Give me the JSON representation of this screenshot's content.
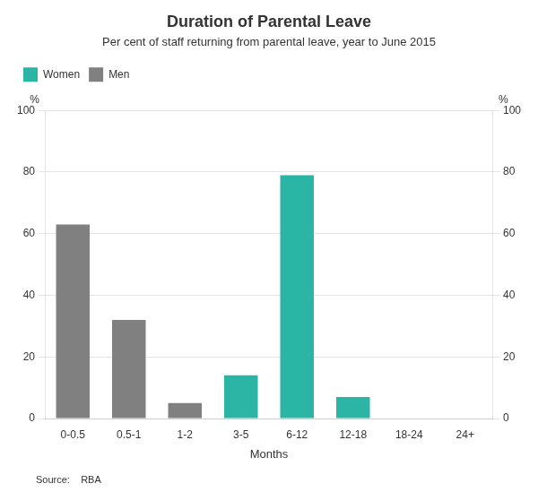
{
  "chart_data": {
    "type": "bar",
    "title": "Duration of Parental Leave",
    "subtitle": "Per cent of staff returning from parental leave, year to June 2015",
    "xlabel": "Months",
    "ylabel": "%",
    "y2label": "%",
    "source": "Source:    RBA",
    "categories": [
      "0-0.5",
      "0.5-1",
      "1-2",
      "3-5",
      "6-12",
      "12-18",
      "18-24",
      "24+"
    ],
    "series": [
      {
        "name": "Women",
        "color": "#2ab5a5",
        "values": [
          0,
          0,
          0,
          14,
          79,
          7,
          0,
          0
        ]
      },
      {
        "name": "Men",
        "color": "#808080",
        "values": [
          63,
          32,
          5,
          0,
          0,
          0,
          0,
          0
        ]
      }
    ],
    "ylim": [
      0,
      100
    ],
    "yticks": [
      0,
      20,
      40,
      60,
      80,
      100
    ],
    "y2lim": [
      0,
      100
    ],
    "y2ticks": [
      0,
      20,
      40,
      60,
      80,
      100
    ],
    "grid": true,
    "legend": "upper left"
  }
}
